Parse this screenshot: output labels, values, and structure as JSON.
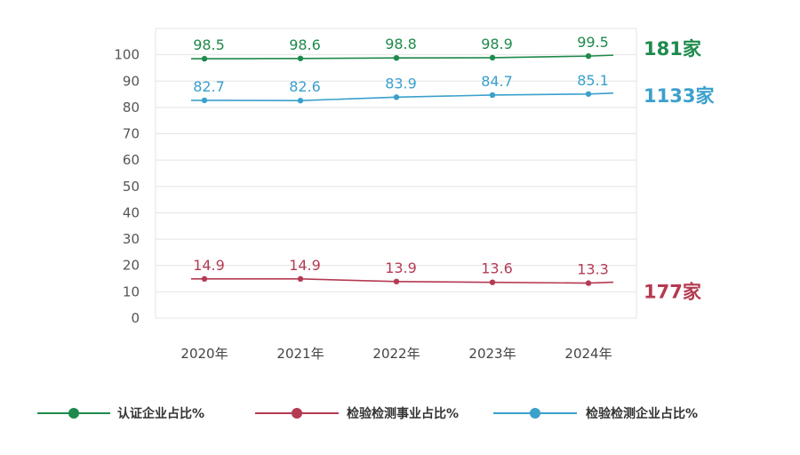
{
  "chart_data": {
    "type": "line",
    "categories": [
      "2020年",
      "2021年",
      "2022年",
      "2023年",
      "2024年"
    ],
    "ylim": [
      0,
      110
    ],
    "yticks": [
      0,
      10,
      20,
      30,
      40,
      50,
      60,
      70,
      80,
      90,
      100
    ],
    "grid": true,
    "legend_position": "bottom",
    "series": [
      {
        "name": "认证企业占比%",
        "color": "#1e8a4c",
        "values": [
          98.5,
          98.6,
          98.8,
          98.9,
          99.5
        ],
        "labels": [
          "98.5",
          "98.6",
          "98.8",
          "98.9",
          "99.5"
        ],
        "count": "181家"
      },
      {
        "name": "检验检测事业占比%",
        "color": "#b53a52",
        "values": [
          14.9,
          14.9,
          13.9,
          13.6,
          13.3
        ],
        "labels": [
          "14.9",
          "14.9",
          "13.9",
          "13.6",
          "13.3"
        ],
        "count": "177家"
      },
      {
        "name": "检验检测企业占比%",
        "color": "#3aa0cc",
        "values": [
          82.7,
          82.6,
          83.9,
          84.7,
          85.1
        ],
        "labels": [
          "82.7",
          "82.6",
          "83.9",
          "84.7",
          "85.1"
        ],
        "count": "1133家"
      }
    ]
  }
}
